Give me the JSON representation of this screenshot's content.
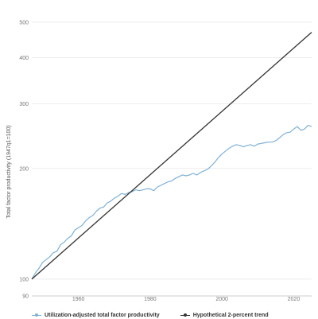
{
  "chart_data": {
    "type": "line",
    "title": "",
    "xlabel": "",
    "ylabel": "Total factor productivity (1947q1=100)",
    "x_ticks": [
      1960,
      1980,
      2000,
      2020
    ],
    "y_ticks": [
      90,
      100,
      200,
      300,
      400,
      500
    ],
    "y_tick_labels": [
      "90",
      "100",
      "200",
      "300",
      "400",
      "500"
    ],
    "x_tick_labels": [
      "1960",
      "1980",
      "2000",
      "2020"
    ],
    "xlim": [
      1947,
      2025
    ],
    "ylim": [
      90,
      520
    ],
    "y_scale": "log",
    "grid": true,
    "legend_position": "bottom",
    "series": [
      {
        "name": "Utilization-adjusted total factor productivity",
        "color": "#7fb0d6",
        "x": [
          1947,
          1948,
          1949,
          1950,
          1951,
          1952,
          1953,
          1954,
          1955,
          1956,
          1957,
          1958,
          1959,
          1960,
          1961,
          1962,
          1963,
          1964,
          1965,
          1966,
          1967,
          1968,
          1969,
          1970,
          1971,
          1972,
          1973,
          1974,
          1975,
          1976,
          1977,
          1978,
          1979,
          1980,
          1981,
          1982,
          1983,
          1984,
          1985,
          1986,
          1987,
          1988,
          1989,
          1990,
          1991,
          1992,
          1993,
          1994,
          1995,
          1996,
          1997,
          1998,
          1999,
          2000,
          2001,
          2002,
          2003,
          2004,
          2005,
          2006,
          2007,
          2008,
          2009,
          2010,
          2011,
          2012,
          2013,
          2014,
          2015,
          2016,
          2017,
          2018,
          2019,
          2020,
          2021,
          2022,
          2023,
          2024,
          2025
        ],
        "y": [
          100,
          104,
          107,
          111,
          113,
          115,
          118,
          119,
          124,
          126,
          129,
          131,
          136,
          138,
          140,
          144,
          147,
          149,
          153,
          156,
          157,
          161,
          163,
          166,
          168,
          171,
          170,
          172,
          173,
          175,
          174,
          175,
          176,
          176,
          174,
          178,
          180,
          182,
          184,
          185,
          188,
          190,
          192,
          191,
          192,
          194,
          192,
          195,
          197,
          199,
          203,
          208,
          214,
          219,
          223,
          227,
          230,
          232,
          231,
          229,
          231,
          232,
          230,
          233,
          234,
          235,
          236,
          236,
          238,
          242,
          247,
          250,
          251,
          256,
          260,
          254,
          256,
          262,
          260
        ]
      },
      {
        "name": "Hypothetical 2-percent trend",
        "color": "#333333",
        "x": [
          1947,
          2025
        ],
        "y": [
          100,
          469.3
        ]
      }
    ]
  }
}
